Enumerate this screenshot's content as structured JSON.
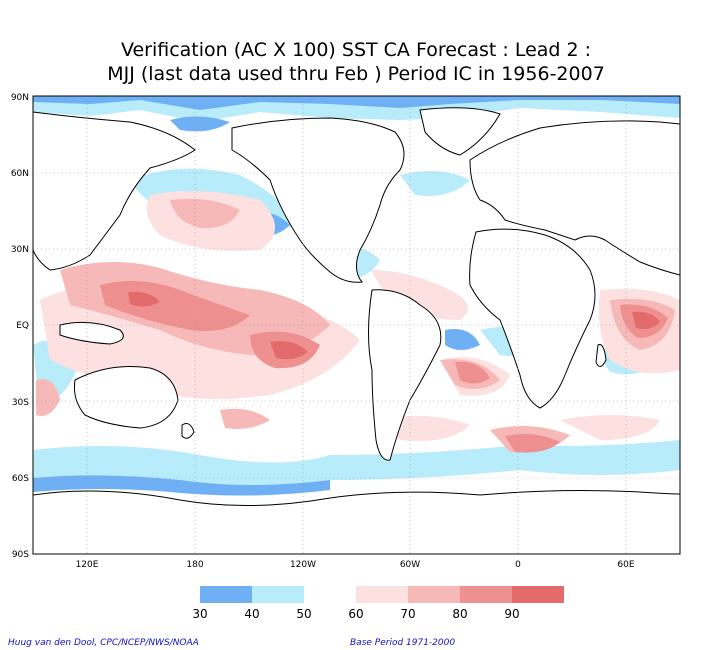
{
  "title": {
    "line1": "Verification (AC X 100) SST CA Forecast : Lead 2 :",
    "line2": "MJJ (last data used thru Feb ) Period IC in 1956-2007"
  },
  "map": {
    "lat_ticks": [
      "90N",
      "60N",
      "30N",
      "EQ",
      "30S",
      "60S",
      "90S"
    ],
    "lon_ticks": [
      "120E",
      "180",
      "120W",
      "60W",
      "0",
      "60E"
    ]
  },
  "legend": {
    "colors": [
      "#6fb0f5",
      "#b8ecfa",
      "#ffffff",
      "#fde1e1",
      "#f7b8b8",
      "#ef9090",
      "#e46b6b"
    ],
    "labels": [
      "30",
      "40",
      "50",
      "60",
      "70",
      "80",
      "90"
    ]
  },
  "credits": {
    "left": "Huug van den Dool, CPC/NCEP/NWS/NOAA",
    "right": "Base Period 1971-2000"
  }
}
